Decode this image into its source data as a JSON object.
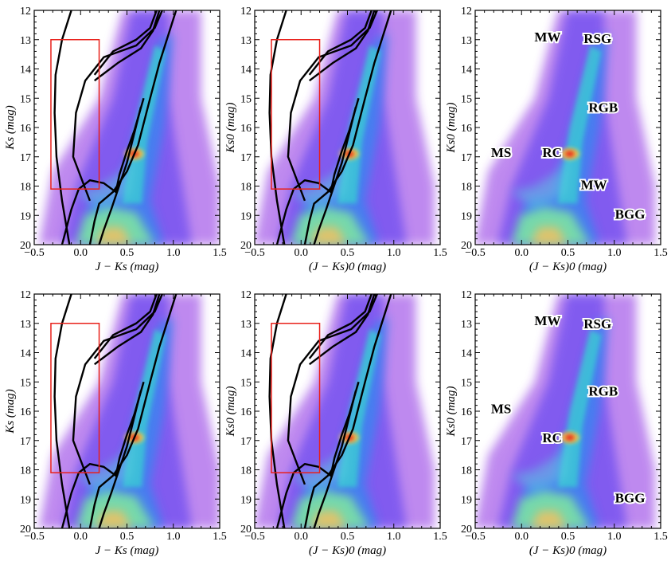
{
  "chart_data": [
    {
      "type": "density",
      "xlim": [
        -0.5,
        1.5
      ],
      "ylim": [
        20,
        12
      ],
      "xticks": [
        {
          "value": -0.5,
          "label": "−0.5"
        },
        {
          "value": 0,
          "label": "0.0"
        },
        {
          "value": 0.5,
          "label": "0.5"
        },
        {
          "value": 1,
          "label": "1.0"
        },
        {
          "value": 1.5,
          "label": "1.5"
        }
      ],
      "yticks": [
        12,
        13,
        14,
        15,
        16,
        17,
        18,
        19,
        20
      ],
      "x_label": "J − Ks (mag)",
      "y_label": "Ks (mag)",
      "annotations": []
    },
    {
      "type": "density",
      "xlim": [
        -0.5,
        1.5
      ],
      "ylim": [
        20,
        12
      ],
      "xticks": [
        {
          "value": -0.5,
          "label": "−0.5"
        },
        {
          "value": 0,
          "label": "0.0"
        },
        {
          "value": 0.5,
          "label": "0.5"
        },
        {
          "value": 1,
          "label": "1.0"
        },
        {
          "value": 1.5,
          "label": "1.5"
        }
      ],
      "yticks": [
        12,
        13,
        14,
        15,
        16,
        17,
        18,
        19,
        20
      ],
      "x_label": "(J − Ks)0 (mag)",
      "y_label": "Ks0 (mag)",
      "annotations": []
    },
    {
      "type": "density",
      "xlim": [
        -0.5,
        1.5
      ],
      "ylim": [
        20,
        12
      ],
      "xticks": [
        {
          "value": -0.5,
          "label": "−0.5"
        },
        {
          "value": 0,
          "label": "0.0"
        },
        {
          "value": 0.5,
          "label": "0.5"
        },
        {
          "value": 1,
          "label": "1.0"
        },
        {
          "value": 1.5,
          "label": "1.5"
        }
      ],
      "yticks": [
        12,
        13,
        14,
        15,
        16,
        17,
        18,
        19,
        20
      ],
      "x_label": "(J − Ks)0 (mag)",
      "y_label": "Ks0 (mag)",
      "annotations": [
        "MW",
        "RSG",
        "RGB",
        "MS",
        "RC",
        "MW",
        "BGG"
      ]
    },
    {
      "type": "density",
      "xlim": [
        -0.5,
        1.5
      ],
      "ylim": [
        20,
        12
      ],
      "xticks": [
        {
          "value": -0.5,
          "label": "−0.5"
        },
        {
          "value": 0,
          "label": "0.0"
        },
        {
          "value": 0.5,
          "label": "0.5"
        },
        {
          "value": 1,
          "label": "1.0"
        },
        {
          "value": 1.5,
          "label": "1.5"
        }
      ],
      "yticks": [
        12,
        13,
        14,
        15,
        16,
        17,
        18,
        19,
        20
      ],
      "x_label": "J − Ks (mag)",
      "y_label": "Ks (mag)",
      "annotations": []
    },
    {
      "type": "density",
      "xlim": [
        -0.5,
        1.5
      ],
      "ylim": [
        20,
        12
      ],
      "xticks": [
        {
          "value": -0.5,
          "label": "−0.5"
        },
        {
          "value": 0,
          "label": "0.0"
        },
        {
          "value": 0.5,
          "label": "0.5"
        },
        {
          "value": 1,
          "label": "1.0"
        },
        {
          "value": 1.5,
          "label": "1.5"
        }
      ],
      "yticks": [
        12,
        13,
        14,
        15,
        16,
        17,
        18,
        19,
        20
      ],
      "x_label": "(J − Ks)0 (mag)",
      "y_label": "Ks0 (mag)",
      "annotations": []
    },
    {
      "type": "density",
      "xlim": [
        -0.5,
        1.5
      ],
      "ylim": [
        20,
        12
      ],
      "xticks": [
        {
          "value": -0.5,
          "label": "−0.5"
        },
        {
          "value": 0,
          "label": "0.0"
        },
        {
          "value": 0.5,
          "label": "0.5"
        },
        {
          "value": 1,
          "label": "1.0"
        },
        {
          "value": 1.5,
          "label": "1.5"
        }
      ],
      "yticks": [
        12,
        13,
        14,
        15,
        16,
        17,
        18,
        19,
        20
      ],
      "x_label": "(J − Ks)0 (mag)",
      "y_label": "Ks0 (mag)",
      "annotations": [
        "MW",
        "RSG",
        "RGB",
        "MS",
        "RC",
        "BGG"
      ]
    }
  ]
}
